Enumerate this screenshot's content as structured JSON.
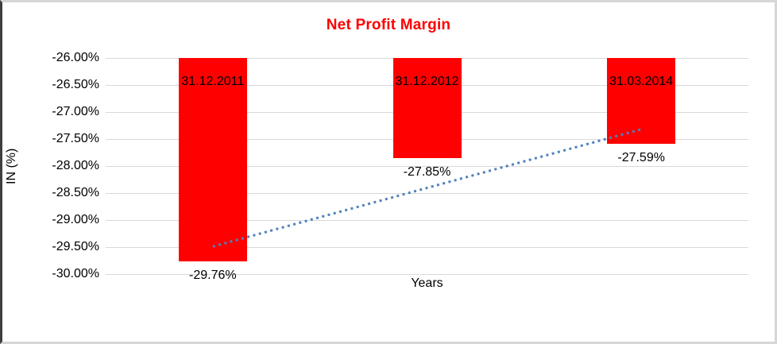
{
  "chart_data": {
    "type": "bar",
    "title": "Net Profit Margin",
    "title_color": "#FF0000",
    "xlabel": "Years",
    "ylabel": "IN (%)",
    "categories": [
      "31.12.2011",
      "31.12.2012",
      "31.03.2014"
    ],
    "values": [
      -29.76,
      -27.85,
      -27.59
    ],
    "data_labels": [
      "-29.76%",
      "-27.85%",
      "-27.59%"
    ],
    "bar_color": "#FF0000",
    "axis": {
      "y_max": -26.0,
      "y_min": -30.0,
      "y_step": 0.5,
      "tick_labels": [
        "-26.00%",
        "-26.50%",
        "-27.00%",
        "-27.50%",
        "-28.00%",
        "-28.50%",
        "-29.00%",
        "-29.50%",
        "-30.00%"
      ]
    },
    "grid": true,
    "gridline_color": "#d9d9d9",
    "legend": "none",
    "trendline": {
      "type": "linear",
      "style": "dotted",
      "color": "#4F81BD",
      "y_start": -29.49,
      "y_end": -27.32
    }
  }
}
